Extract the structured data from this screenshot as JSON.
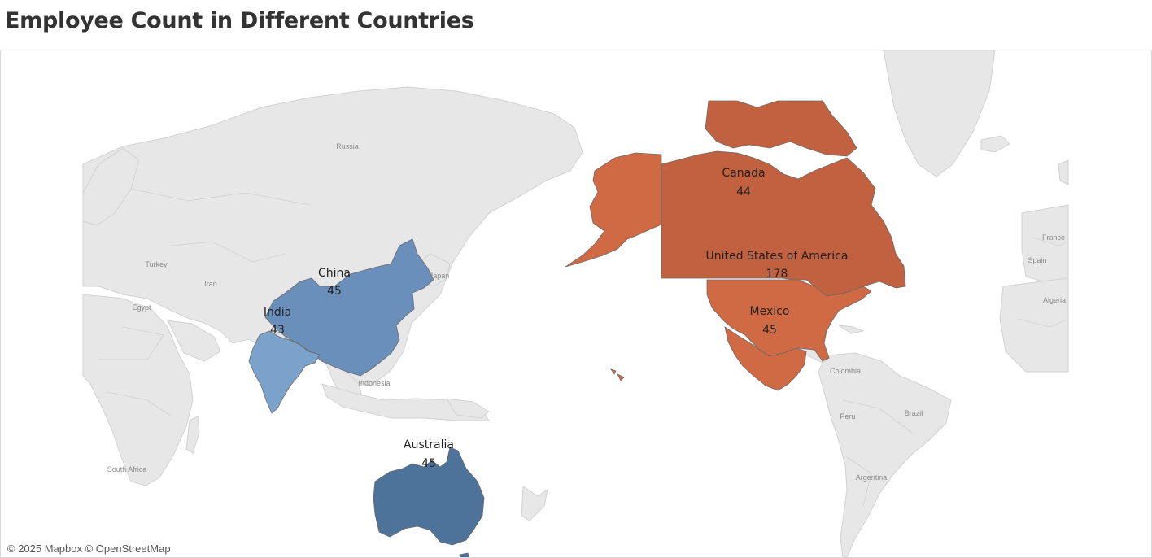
{
  "title": "Employee Count in Different Countries",
  "attribution": "© 2025 Mapbox © OpenStreetMap",
  "base_map_labels": [
    "Russia",
    "Turkey",
    "Iran",
    "Egypt",
    "Japan",
    "Indonesia",
    "South Africa",
    "France",
    "Spain",
    "Algeria",
    "Colombia",
    "Peru",
    "Brazil",
    "Argentina"
  ],
  "colors": {
    "land": "#e7e7e7",
    "water": "#ffffff",
    "low_blue": "#7ba2cb",
    "mid_blue": "#6a8fbb",
    "dark_blue": "#4e739b",
    "orange": "#d06a45",
    "dark_orange": "#c2613f"
  },
  "countries": [
    {
      "name": "China",
      "employees": "45"
    },
    {
      "name": "India",
      "employees": "43"
    },
    {
      "name": "Australia",
      "employees": "45"
    },
    {
      "name": "Canada",
      "employees": "44"
    },
    {
      "name": "United States of America",
      "employees": "178"
    },
    {
      "name": "Mexico",
      "employees": "45"
    }
  ]
}
